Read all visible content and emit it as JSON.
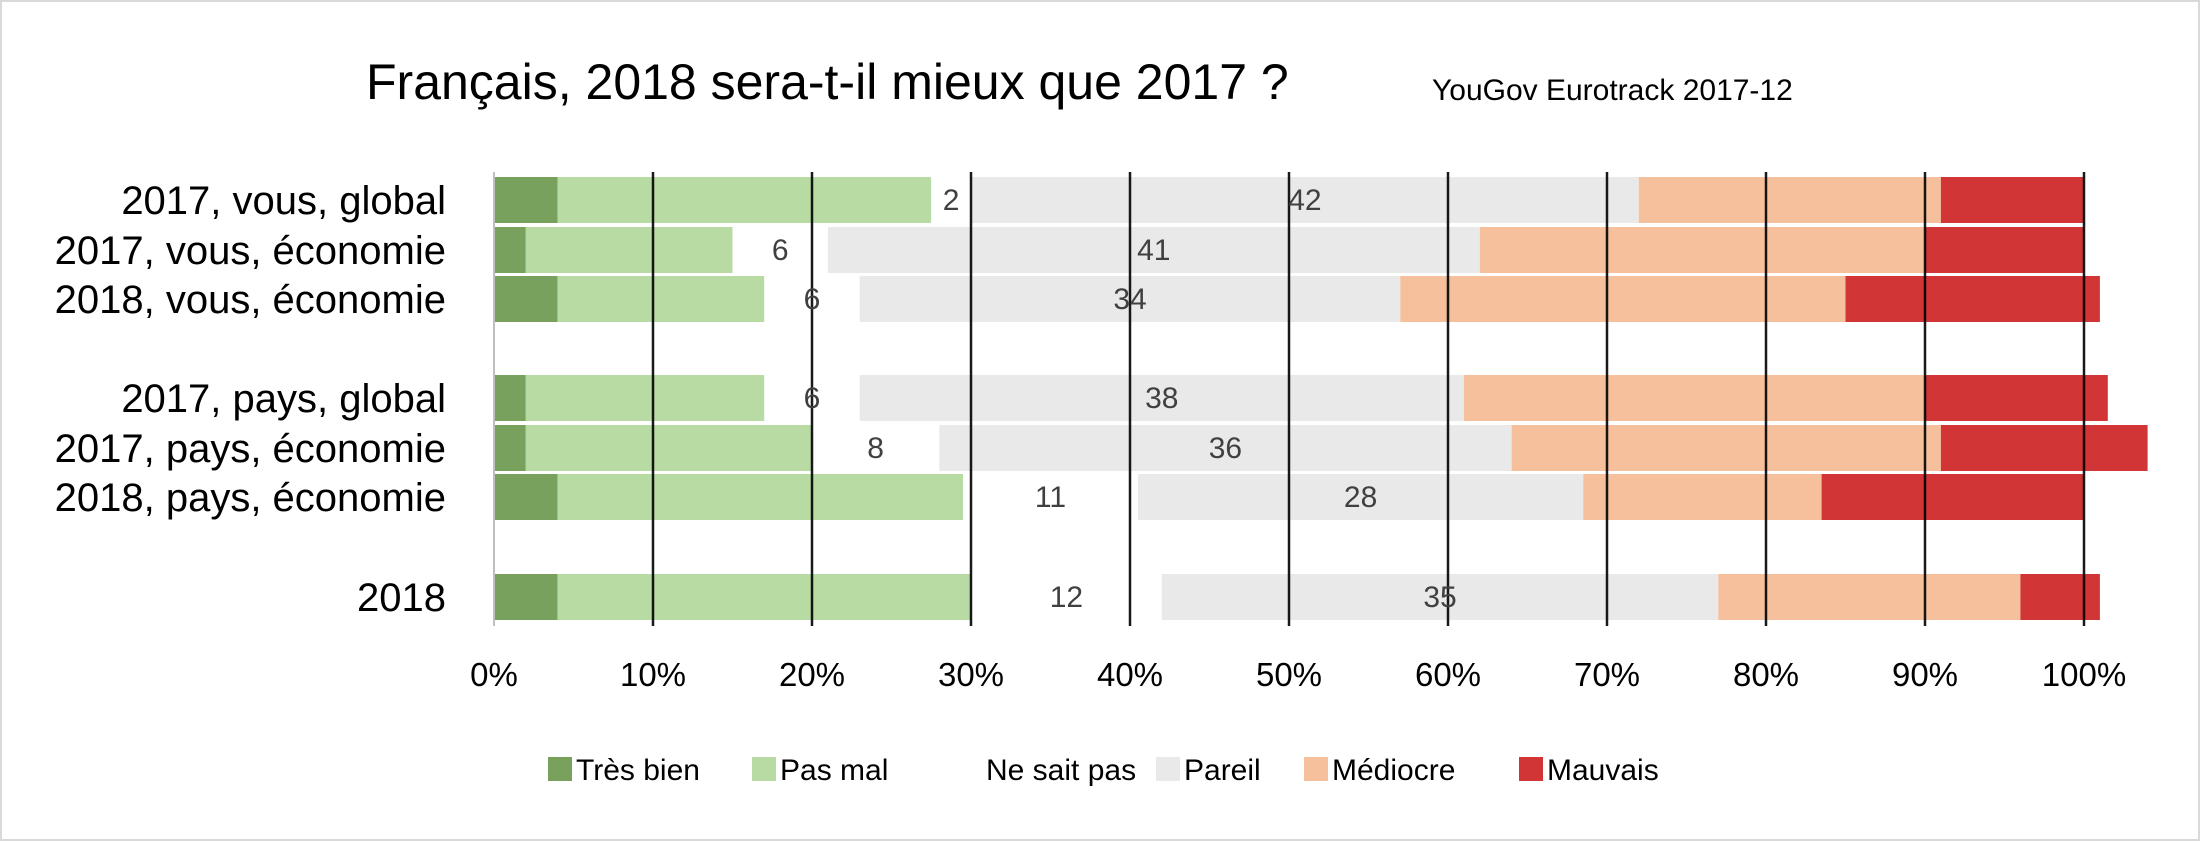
{
  "chart_data": {
    "type": "bar",
    "orientation": "horizontal",
    "stacked": true,
    "percent_scale": true,
    "title": "Français, 2018 sera-t-il mieux que 2017 ?",
    "subtitle": "YouGov Eurotrack 2017-12",
    "categories": [
      "2017, vous, global",
      "2017, vous, économie",
      "2018, vous, économie",
      "2017, pays, global",
      "2017, pays, économie",
      "2018, pays, économie",
      "2018"
    ],
    "series": [
      {
        "name": "Très bien",
        "color": "#77a15d",
        "values": [
          4,
          2,
          4,
          2,
          2,
          4,
          4
        ],
        "show_labels": false
      },
      {
        "name": "Pas mal",
        "color": "#b8dba3",
        "values": [
          23.5,
          13,
          13,
          15,
          18,
          25.5,
          26
        ],
        "show_labels": false
      },
      {
        "name": "Ne sait pas",
        "color": "#ffffff",
        "values": [
          2.5,
          6,
          6,
          6,
          8,
          11,
          12
        ],
        "show_labels": true
      },
      {
        "name": "Pareil",
        "color": "#e9e9e9",
        "values": [
          42,
          41,
          34,
          38,
          36,
          28,
          35
        ],
        "show_labels": true
      },
      {
        "name": "Médiocre",
        "color": "#f6c09d",
        "values": [
          19,
          28,
          28,
          29,
          27,
          15,
          19
        ],
        "show_labels": false
      },
      {
        "name": "Mauvais",
        "color": "#d13535",
        "values": [
          9,
          10,
          16,
          11.5,
          13,
          16.5,
          5
        ],
        "show_labels": false
      }
    ],
    "data_labels": {
      "Ne sait pas": [
        "2",
        "6",
        "6",
        "6",
        "8",
        "11",
        "12"
      ],
      "Pareil": [
        "42",
        "41",
        "34",
        "38",
        "36",
        "28",
        "35"
      ]
    },
    "x_ticks": [
      "0%",
      "10%",
      "20%",
      "30%",
      "40%",
      "50%",
      "60%",
      "70%",
      "80%",
      "90%",
      "100%"
    ],
    "xlim": [
      0,
      100
    ],
    "grid": true,
    "legend_position": "bottom"
  }
}
